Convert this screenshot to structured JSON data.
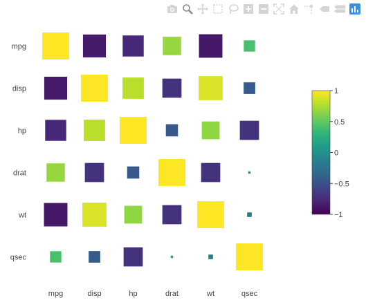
{
  "toolbar": {
    "buttons": [
      {
        "name": "camera-icon",
        "active": false
      },
      {
        "name": "zoom-icon",
        "active": true
      },
      {
        "name": "pan-icon",
        "active": false
      },
      {
        "name": "box-select-icon",
        "active": false
      },
      {
        "name": "lasso-select-icon",
        "active": false
      },
      {
        "name": "zoom-in-icon",
        "active": false
      },
      {
        "name": "zoom-out-icon",
        "active": false
      },
      {
        "name": "autoscale-icon",
        "active": false
      },
      {
        "name": "reset-axes-icon",
        "active": false
      },
      {
        "name": "spike-lines-icon",
        "active": false
      },
      {
        "name": "hover-closest-icon",
        "active": false
      },
      {
        "name": "hover-compare-icon",
        "active": false
      },
      {
        "name": "plotly-logo-icon",
        "active": false
      }
    ]
  },
  "colors": {
    "toolbar_icon": "#d4d4d4",
    "toolbar_active": "#8a8a8a",
    "logo": "#3f8fe0",
    "viridis": [
      "#440154",
      "#482878",
      "#3e4989",
      "#31688e",
      "#26828e",
      "#1f9e89",
      "#35b779",
      "#6ece58",
      "#b5de2b",
      "#fde725"
    ]
  },
  "chart_data": {
    "type": "heatmap",
    "variables": [
      "mpg",
      "disp",
      "hp",
      "drat",
      "wt",
      "qsec"
    ],
    "values": [
      [
        1.0,
        -0.85,
        -0.78,
        0.68,
        -0.87,
        0.42
      ],
      [
        -0.85,
        1.0,
        0.79,
        -0.71,
        0.89,
        -0.43
      ],
      [
        -0.78,
        0.79,
        1.0,
        -0.45,
        0.66,
        -0.71
      ],
      [
        0.68,
        -0.71,
        -0.45,
        1.0,
        -0.71,
        0.09
      ],
      [
        -0.87,
        0.89,
        0.66,
        -0.71,
        1.0,
        -0.17
      ],
      [
        0.42,
        -0.43,
        -0.71,
        0.09,
        -0.17,
        1.0
      ]
    ],
    "size_encoding": "abs(value)",
    "colorscale": "viridis",
    "zmin": -1,
    "zmax": 1,
    "colorbar": {
      "ticks": [
        1,
        0.5,
        0,
        -0.5,
        -1
      ],
      "ticklabels": [
        "1",
        "0.5",
        "0",
        "−0.5",
        "−1"
      ],
      "placement": "right"
    },
    "grid": false,
    "legend": "none",
    "title": "",
    "xlabel": "",
    "ylabel": ""
  }
}
